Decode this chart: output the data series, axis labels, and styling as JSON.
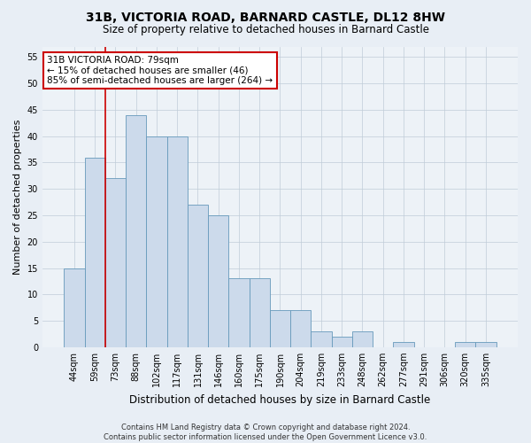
{
  "title": "31B, VICTORIA ROAD, BARNARD CASTLE, DL12 8HW",
  "subtitle": "Size of property relative to detached houses in Barnard Castle",
  "xlabel": "Distribution of detached houses by size in Barnard Castle",
  "ylabel": "Number of detached properties",
  "categories": [
    "44sqm",
    "59sqm",
    "73sqm",
    "88sqm",
    "102sqm",
    "117sqm",
    "131sqm",
    "146sqm",
    "160sqm",
    "175sqm",
    "190sqm",
    "204sqm",
    "219sqm",
    "233sqm",
    "248sqm",
    "262sqm",
    "277sqm",
    "291sqm",
    "306sqm",
    "320sqm",
    "335sqm"
  ],
  "values": [
    15,
    36,
    32,
    44,
    40,
    40,
    27,
    25,
    13,
    13,
    7,
    7,
    3,
    2,
    3,
    0,
    1,
    0,
    0,
    1,
    1
  ],
  "bar_color": "#ccdaeb",
  "bar_edge_color": "#6699bb",
  "ylim": [
    0,
    57
  ],
  "yticks": [
    0,
    5,
    10,
    15,
    20,
    25,
    30,
    35,
    40,
    45,
    50,
    55
  ],
  "vline_x": 1.5,
  "vline_color": "#cc0000",
  "annotation_text": "31B VICTORIA ROAD: 79sqm\n← 15% of detached houses are smaller (46)\n85% of semi-detached houses are larger (264) →",
  "annotation_box_facecolor": "#ffffff",
  "annotation_box_edgecolor": "#cc0000",
  "footer_text": "Contains HM Land Registry data © Crown copyright and database right 2024.\nContains public sector information licensed under the Open Government Licence v3.0.",
  "bg_color": "#e8eef5",
  "plot_bg_color": "#edf2f7",
  "title_fontsize": 10,
  "subtitle_fontsize": 8.5,
  "xlabel_fontsize": 8.5,
  "ylabel_fontsize": 8,
  "tick_fontsize": 7,
  "footer_fontsize": 6,
  "annot_fontsize": 7.5
}
